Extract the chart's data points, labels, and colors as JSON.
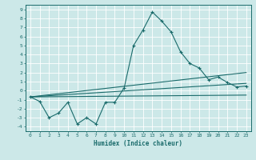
{
  "xlabel": "Humidex (Indice chaleur)",
  "bg_color": "#cce8e8",
  "grid_color": "#ffffff",
  "line_color": "#1a6b6b",
  "xlim": [
    -0.5,
    23.5
  ],
  "ylim": [
    -4.5,
    9.5
  ],
  "xticks": [
    0,
    1,
    2,
    3,
    4,
    5,
    6,
    7,
    8,
    9,
    10,
    11,
    12,
    13,
    14,
    15,
    16,
    17,
    18,
    19,
    20,
    21,
    22,
    23
  ],
  "yticks": [
    -4,
    -3,
    -2,
    -1,
    0,
    1,
    2,
    3,
    4,
    5,
    6,
    7,
    8,
    9
  ],
  "series1_x": [
    0,
    1,
    2,
    3,
    4,
    5,
    6,
    7,
    8,
    9,
    10,
    11,
    12,
    13,
    14,
    15,
    16,
    17,
    18,
    19,
    20,
    21,
    22,
    23
  ],
  "series1_y": [
    -0.7,
    -1.2,
    -3.0,
    -2.5,
    -1.3,
    -3.7,
    -3.0,
    -3.7,
    -1.3,
    -1.3,
    0.3,
    5.0,
    6.7,
    8.7,
    7.7,
    6.5,
    4.3,
    3.0,
    2.5,
    1.2,
    1.5,
    0.9,
    0.4,
    0.5
  ],
  "trend1_x": [
    0,
    23
  ],
  "trend1_y": [
    -0.7,
    2.0
  ],
  "trend2_x": [
    0,
    23
  ],
  "trend2_y": [
    -0.7,
    0.8
  ],
  "trend3_x": [
    0,
    23
  ],
  "trend3_y": [
    -0.7,
    -0.5
  ]
}
